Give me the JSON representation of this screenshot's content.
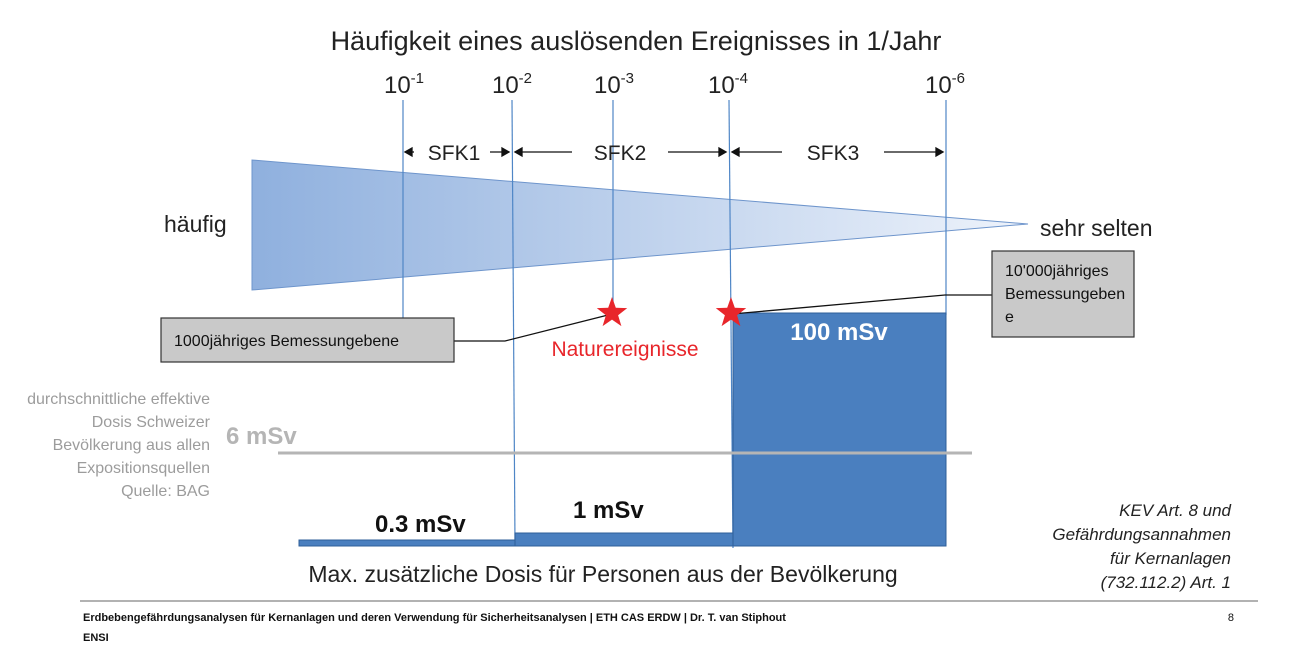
{
  "title": "Häufigkeit eines auslösenden Ereignisses in 1/Jahr",
  "frequency_ticks": [
    {
      "base": "10",
      "exp": "-1"
    },
    {
      "base": "10",
      "exp": "-2"
    },
    {
      "base": "10",
      "exp": "-3"
    },
    {
      "base": "10",
      "exp": "-4"
    },
    {
      "base": "10",
      "exp": "-6"
    }
  ],
  "categories": [
    "SFK1",
    "SFK2",
    "SFK3"
  ],
  "wedge": {
    "left_label": "häufig",
    "right_label": "sehr selten",
    "color": "#9bb8e2"
  },
  "callouts": {
    "left": "1000jähriges Bemessungebene",
    "right_lines": [
      "10'000jähriges",
      "Bemessungeben",
      "e"
    ]
  },
  "nature_events": {
    "label": "Naturereignisse",
    "color": "#e8262b"
  },
  "dose_levels": [
    "0.3 mSv",
    "1 mSv",
    "100 mSv"
  ],
  "reference": {
    "value": "6 mSv",
    "description_lines": [
      "durchschnittliche effektive",
      "Dosis Schweizer",
      "Bevölkerung aus allen",
      "Expositionsquellen",
      "Quelle: BAG"
    ],
    "color": "#b5b5b5"
  },
  "bottom_label": "Max. zusätzliche Dosis für Personen aus der Bevölkerung",
  "legal_note_lines": [
    "KEV Art. 8 und",
    "Gefährdungsannahmen",
    "für Kernanlagen",
    "(732.112.2) Art. 1"
  ],
  "footer": {
    "text": "Erdbebengefährdungsanalysen für Kernanlagen und deren Verwendung für Sicherheitsanalysen | ETH CAS ERDW | Dr. T. van Stiphout",
    "org": "ENSI",
    "page": "8"
  },
  "colors": {
    "bar": "#4a7fbf",
    "bar_stroke": "#2f5f9a",
    "line": "#4f86c6"
  }
}
